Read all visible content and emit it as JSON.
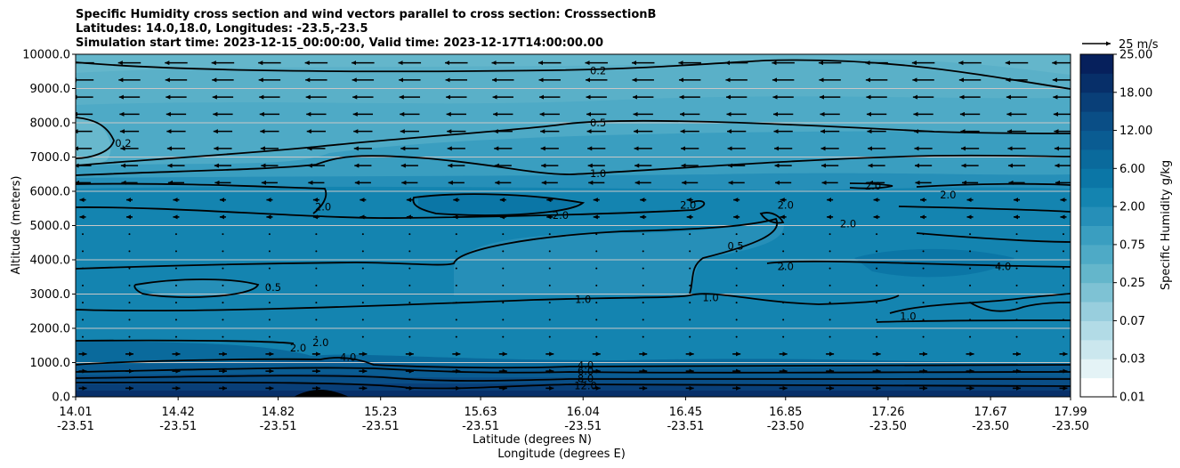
{
  "chart_data": {
    "type": "heatmap",
    "title_lines": [
      "Specific Humidity cross section and wind vectors parallel to cross section: CrosssectionB",
      "Latitudes: 14.0,18.0, Longitudes: -23.5,-23.5",
      "Simulation start time: 2023-12-15_00:00:00, Valid time: 2023-12-17T14:00:00.00"
    ],
    "ylabel": "Altitude (meters)",
    "xlabel_lines": [
      "Latitude (degrees N)",
      "Longitude (degrees E)"
    ],
    "ylim": [
      0,
      10000
    ],
    "yticks": [
      "0.0",
      "1000.0",
      "2000.0",
      "3000.0",
      "4000.0",
      "5000.0",
      "6000.0",
      "7000.0",
      "8000.0",
      "9000.0",
      "10000.0"
    ],
    "xticks": [
      {
        "lat": "14.01",
        "lon": "-23.51"
      },
      {
        "lat": "14.42",
        "lon": "-23.51"
      },
      {
        "lat": "14.82",
        "lon": "-23.51"
      },
      {
        "lat": "15.23",
        "lon": "-23.51"
      },
      {
        "lat": "15.63",
        "lon": "-23.51"
      },
      {
        "lat": "16.04",
        "lon": "-23.51"
      },
      {
        "lat": "16.45",
        "lon": "-23.51"
      },
      {
        "lat": "16.85",
        "lon": "-23.50"
      },
      {
        "lat": "17.26",
        "lon": "-23.50"
      },
      {
        "lat": "17.67",
        "lon": "-23.50"
      },
      {
        "lat": "17.99",
        "lon": "-23.50"
      }
    ],
    "grid": "horizontal",
    "colorbar": {
      "label": "Specific Humidity g/kg",
      "ticks": [
        "0.01",
        "0.03",
        "0.07",
        "0.25",
        "0.75",
        "2.00",
        "6.00",
        "12.00",
        "18.00",
        "25.00"
      ],
      "levels": [
        0.01,
        0.02,
        0.03,
        0.05,
        0.07,
        0.1,
        0.25,
        0.5,
        0.75,
        1.0,
        2.0,
        4.0,
        6.0,
        8.0,
        12.0,
        15.0,
        18.0,
        21.0,
        25.0
      ],
      "colors": [
        "#ffffff",
        "#e4f3f6",
        "#cbe7ee",
        "#b2dbe6",
        "#98cedd",
        "#7ec2d4",
        "#64b6cb",
        "#4eaac6",
        "#3a9ec0",
        "#268fb8",
        "#1484b0",
        "#0b76a6",
        "#0a6a9c",
        "#0a5c92",
        "#0a4e86",
        "#093f78",
        "#072f69",
        "#06205c"
      ]
    },
    "quiver_key": "25 m/s",
    "contour_labels": [
      {
        "text": "0.2",
        "lat": 16.1,
        "alt": 9520
      },
      {
        "text": "0.5",
        "lat": 16.1,
        "alt": 8000
      },
      {
        "text": "1.0",
        "lat": 16.1,
        "alt": 6520
      },
      {
        "text": "0.2",
        "lat": 14.2,
        "alt": 7400
      },
      {
        "text": "2.0",
        "lat": 15.0,
        "alt": 5550
      },
      {
        "text": "2.0",
        "lat": 15.95,
        "alt": 5300
      },
      {
        "text": "2.0",
        "lat": 16.46,
        "alt": 5600
      },
      {
        "text": "2.0",
        "lat": 16.85,
        "alt": 5600
      },
      {
        "text": "2.0",
        "lat": 17.2,
        "alt": 6150
      },
      {
        "text": "2.0",
        "lat": 17.5,
        "alt": 5900
      },
      {
        "text": "2.0",
        "lat": 17.1,
        "alt": 5050
      },
      {
        "text": "0.5",
        "lat": 16.65,
        "alt": 4400
      },
      {
        "text": "2.0",
        "lat": 16.85,
        "alt": 3800
      },
      {
        "text": "4.0",
        "lat": 17.72,
        "alt": 3800
      },
      {
        "text": "0.5",
        "lat": 14.8,
        "alt": 3200
      },
      {
        "text": "1.0",
        "lat": 16.04,
        "alt": 2850
      },
      {
        "text": "1.0",
        "lat": 16.55,
        "alt": 2900
      },
      {
        "text": "1.0",
        "lat": 17.34,
        "alt": 2350
      },
      {
        "text": "2.0",
        "lat": 14.9,
        "alt": 1430
      },
      {
        "text": "2.0",
        "lat": 14.99,
        "alt": 1580
      },
      {
        "text": "4.0",
        "lat": 15.1,
        "alt": 1150
      },
      {
        "text": "4.0",
        "lat": 16.05,
        "alt": 920
      },
      {
        "text": "6.0",
        "lat": 16.05,
        "alt": 750
      },
      {
        "text": "8.0",
        "lat": 16.05,
        "alt": 530
      },
      {
        "text": "12.0",
        "lat": 16.05,
        "alt": 320
      }
    ]
  }
}
